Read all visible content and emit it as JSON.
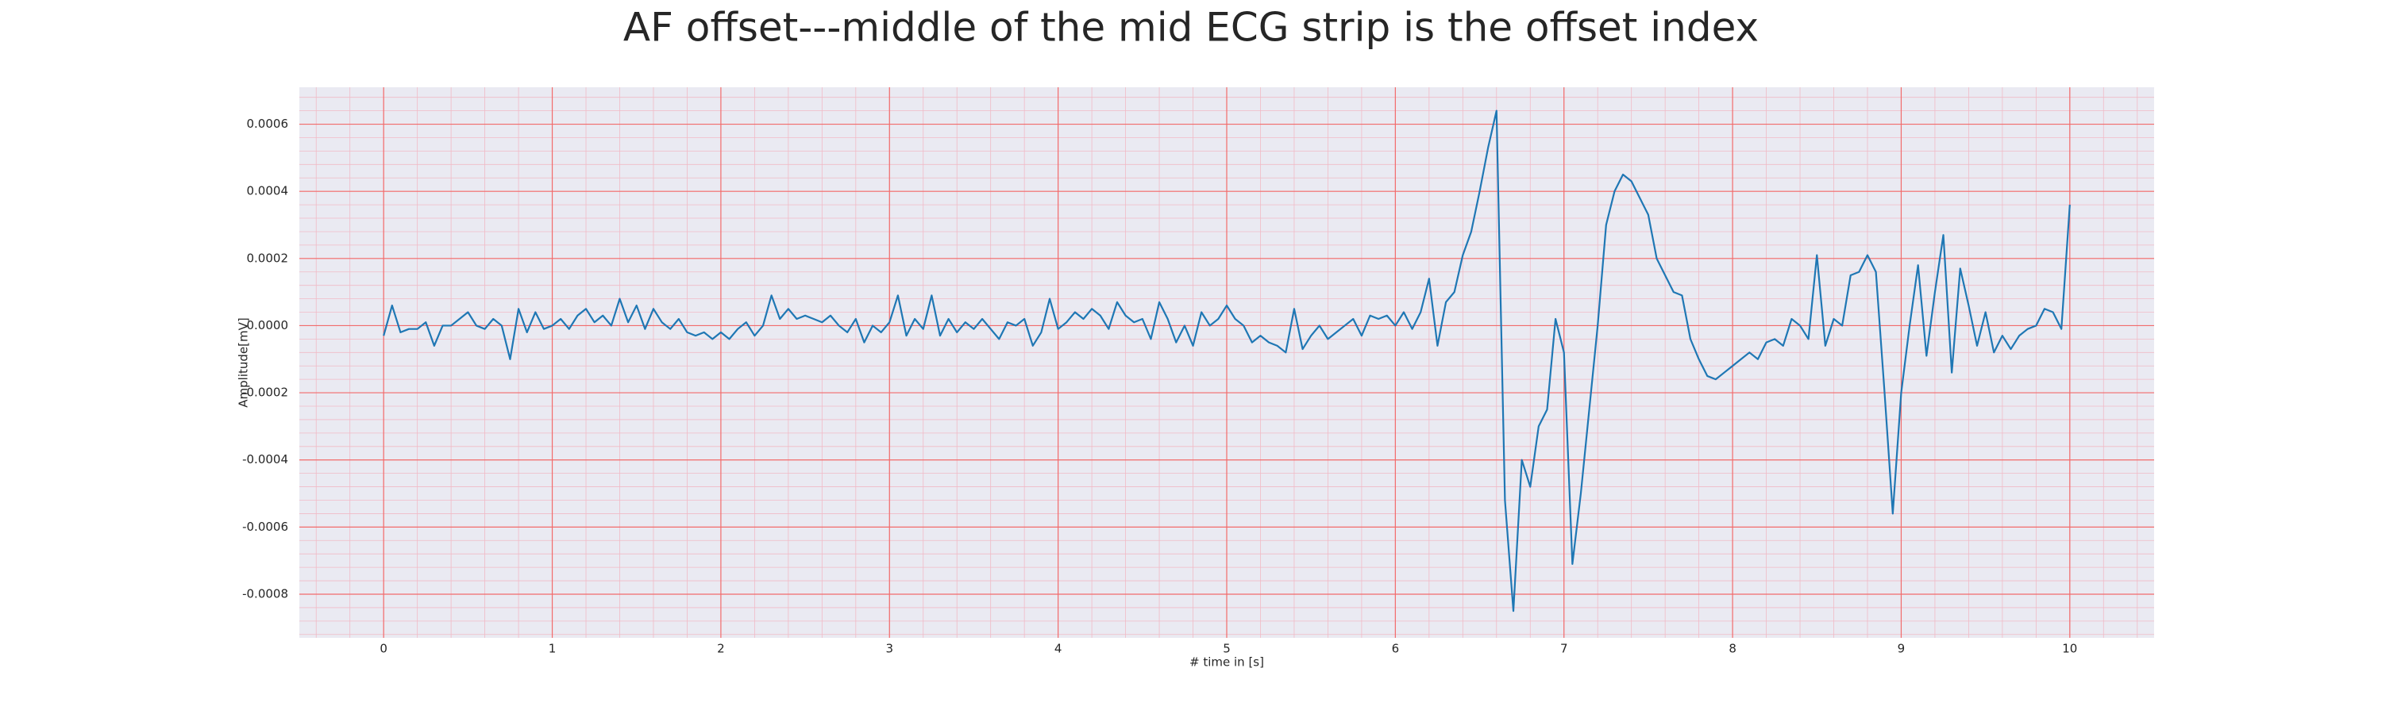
{
  "chart_data": {
    "type": "line",
    "title": "AF offset---middle of the mid ECG strip is the offset index",
    "xlabel": "# time in [s]",
    "ylabel": "Amplitude[mV]",
    "color": "#1f77b4",
    "grid": true,
    "xlim": [
      -0.5,
      10.5
    ],
    "ylim": [
      -0.00093,
      0.00071
    ],
    "xticks": [
      0,
      1,
      2,
      3,
      4,
      5,
      6,
      7,
      8,
      9,
      10
    ],
    "yticks": [
      -0.0008,
      -0.0006,
      -0.0004,
      -0.0002,
      {
        "value": 0,
        "label": "0.0000"
      },
      0.0002,
      0.0004,
      0.0006
    ],
    "x": [
      0,
      0.05,
      0.1,
      0.15,
      0.2,
      0.25,
      0.3,
      0.35,
      0.4,
      0.45,
      0.5,
      0.55,
      0.6,
      0.65,
      0.7,
      0.75,
      0.8,
      0.85,
      0.9,
      0.95,
      1,
      1.05,
      1.1,
      1.15,
      1.2,
      1.25,
      1.3,
      1.35,
      1.4,
      1.45,
      1.5,
      1.55,
      1.6,
      1.65,
      1.7,
      1.75,
      1.8,
      1.85,
      1.9,
      1.95,
      2,
      2.05,
      2.1,
      2.15,
      2.2,
      2.25,
      2.3,
      2.35,
      2.4,
      2.45,
      2.5,
      2.55,
      2.6,
      2.65,
      2.7,
      2.75,
      2.8,
      2.85,
      2.9,
      2.95,
      3,
      3.05,
      3.1,
      3.15,
      3.2,
      3.25,
      3.3,
      3.35,
      3.4,
      3.45,
      3.5,
      3.55,
      3.6,
      3.65,
      3.7,
      3.75,
      3.8,
      3.85,
      3.9,
      3.95,
      4,
      4.05,
      4.1,
      4.15,
      4.2,
      4.25,
      4.3,
      4.35,
      4.4,
      4.45,
      4.5,
      4.55,
      4.6,
      4.65,
      4.7,
      4.75,
      4.8,
      4.85,
      4.9,
      4.95,
      5,
      5.05,
      5.1,
      5.15,
      5.2,
      5.25,
      5.3,
      5.35,
      5.4,
      5.45,
      5.5,
      5.55,
      5.6,
      5.65,
      5.7,
      5.75,
      5.8,
      5.85,
      5.9,
      5.95,
      6,
      6.05,
      6.1,
      6.15,
      6.2,
      6.25,
      6.3,
      6.35,
      6.4,
      6.45,
      6.5,
      6.55,
      6.6,
      6.65,
      6.7,
      6.75,
      6.8,
      6.85,
      6.9,
      6.95,
      7,
      7.05,
      7.1,
      7.15,
      7.2,
      7.25,
      7.3,
      7.35,
      7.4,
      7.45,
      7.5,
      7.55,
      7.6,
      7.65,
      7.7,
      7.75,
      7.8,
      7.85,
      7.9,
      7.95,
      8,
      8.05,
      8.1,
      8.15,
      8.2,
      8.25,
      8.3,
      8.35,
      8.4,
      8.45,
      8.5,
      8.55,
      8.6,
      8.65,
      8.7,
      8.75,
      8.8,
      8.85,
      8.9,
      8.95,
      9,
      9.05,
      9.1,
      9.15,
      9.2,
      9.25,
      9.3,
      9.35,
      9.4,
      9.45,
      9.5,
      9.55,
      9.6,
      9.65,
      9.7,
      9.75,
      9.8,
      9.85,
      9.9,
      9.95,
      10
    ],
    "values": [
      -3e-05,
      6e-05,
      -2e-05,
      -1e-05,
      -1e-05,
      1e-05,
      -6e-05,
      0,
      0,
      2e-05,
      4e-05,
      0,
      -1e-05,
      2e-05,
      0,
      -0.0001,
      5e-05,
      -2e-05,
      4e-05,
      -1e-05,
      0,
      2e-05,
      -1e-05,
      3e-05,
      5e-05,
      1e-05,
      3e-05,
      0,
      8e-05,
      1e-05,
      6e-05,
      -1e-05,
      5e-05,
      1e-05,
      -1e-05,
      2e-05,
      -2e-05,
      -3e-05,
      -2e-05,
      -4e-05,
      -2e-05,
      -4e-05,
      -1e-05,
      1e-05,
      -3e-05,
      0,
      9e-05,
      2e-05,
      5e-05,
      2e-05,
      3e-05,
      2e-05,
      1e-05,
      3e-05,
      0,
      -2e-05,
      2e-05,
      -5e-05,
      0,
      -2e-05,
      1e-05,
      9e-05,
      -3e-05,
      2e-05,
      -1e-05,
      9e-05,
      -3e-05,
      2e-05,
      -2e-05,
      1e-05,
      -1e-05,
      2e-05,
      -1e-05,
      -4e-05,
      1e-05,
      0,
      2e-05,
      -6e-05,
      -2e-05,
      8e-05,
      -1e-05,
      1e-05,
      4e-05,
      2e-05,
      5e-05,
      3e-05,
      -1e-05,
      7e-05,
      3e-05,
      1e-05,
      2e-05,
      -4e-05,
      7e-05,
      2e-05,
      -5e-05,
      0,
      -6e-05,
      4e-05,
      0,
      2e-05,
      6e-05,
      2e-05,
      0,
      -5e-05,
      -3e-05,
      -5e-05,
      -6e-05,
      -8e-05,
      5e-05,
      -7e-05,
      -3e-05,
      0,
      -4e-05,
      -2e-05,
      0,
      2e-05,
      -3e-05,
      3e-05,
      2e-05,
      3e-05,
      0,
      4e-05,
      -1e-05,
      4e-05,
      0.00014,
      -6e-05,
      7e-05,
      0.0001,
      0.00021,
      0.00028,
      0.0004,
      0.00053,
      0.00064,
      -0.00052,
      -0.00085,
      -0.0004,
      -0.00048,
      -0.0003,
      -0.00025,
      2e-05,
      -8e-05,
      -0.00071,
      -0.0005,
      -0.00025,
      0,
      0.0003,
      0.0004,
      0.00045,
      0.00043,
      0.00038,
      0.00033,
      0.0002,
      0.00015,
      0.0001,
      9e-05,
      -4e-05,
      -0.0001,
      -0.00015,
      -0.00016,
      -0.00014,
      -0.00012,
      -0.0001,
      -8e-05,
      -0.0001,
      -5e-05,
      -4e-05,
      -6e-05,
      2e-05,
      0,
      -4e-05,
      0.00021,
      -6e-05,
      2e-05,
      0,
      0.00015,
      0.00016,
      0.00021,
      0.00016,
      -0.00019,
      -0.00056,
      -0.0002,
      0,
      0.00018,
      -9e-05,
      0.0001,
      0.00027,
      -0.00014,
      0.00017,
      6e-05,
      -6e-05,
      4e-05,
      -8e-05,
      -3e-05,
      -7e-05,
      -3e-05,
      -1e-05,
      0,
      5e-05,
      4e-05,
      -1e-05,
      0.00036
    ]
  }
}
